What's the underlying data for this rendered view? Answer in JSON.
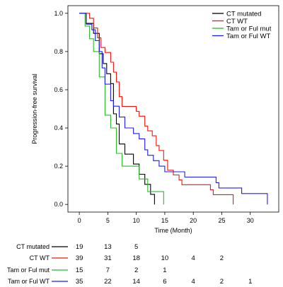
{
  "chart_data": {
    "type": "line",
    "title": "",
    "xlabel": "Time (Month)",
    "ylabel": "Progression-free survival",
    "xlim": [
      -2,
      35
    ],
    "ylim": [
      -0.04,
      1.04
    ],
    "xticks": [
      0,
      5,
      10,
      15,
      20,
      25,
      30
    ],
    "yticks": [
      "0.0",
      "0.2",
      "0.4",
      "0.6",
      "0.8",
      "1.0"
    ],
    "legend_position": "top-right",
    "series": [
      {
        "name": "CT mutated",
        "color": "#000000",
        "steps": [
          [
            0,
            1.0
          ],
          [
            1.2,
            0.947
          ],
          [
            2.5,
            0.895
          ],
          [
            3.5,
            0.789
          ],
          [
            4.2,
            0.737
          ],
          [
            4.8,
            0.684
          ],
          [
            5.5,
            0.632
          ],
          [
            6.0,
            0.474
          ],
          [
            6.5,
            0.421
          ],
          [
            7.0,
            0.316
          ],
          [
            8.0,
            0.263
          ],
          [
            9.5,
            0.211
          ],
          [
            10.5,
            0.158
          ],
          [
            11.5,
            0.105
          ],
          [
            12.5,
            0.053
          ],
          [
            13.2,
            0.0
          ]
        ],
        "end": 13.2
      },
      {
        "name": "CT WT",
        "color": "#e8190f",
        "steps": [
          [
            0,
            1.0
          ],
          [
            1.8,
            0.974
          ],
          [
            2.5,
            0.923
          ],
          [
            3.2,
            0.872
          ],
          [
            3.8,
            0.821
          ],
          [
            4.5,
            0.795
          ],
          [
            5.5,
            0.744
          ],
          [
            6.0,
            0.692
          ],
          [
            6.5,
            0.641
          ],
          [
            7.0,
            0.564
          ],
          [
            7.5,
            0.513
          ],
          [
            10.0,
            0.487
          ],
          [
            10.5,
            0.462
          ],
          [
            11.5,
            0.41
          ],
          [
            12.0,
            0.385
          ],
          [
            12.8,
            0.359
          ],
          [
            13.5,
            0.308
          ],
          [
            14.0,
            0.282
          ],
          [
            14.8,
            0.231
          ],
          [
            15.5,
            0.179
          ],
          [
            16.5,
            0.154
          ],
          [
            17.5,
            0.128
          ],
          [
            18.0,
            0.103
          ],
          [
            23.0,
            0.077
          ],
          [
            23.5,
            0.051
          ],
          [
            27.0,
            0.0
          ]
        ],
        "end": 27.0
      },
      {
        "name": "Tam or Ful mut",
        "color": "#2db82d",
        "steps": [
          [
            0,
            1.0
          ],
          [
            1.0,
            0.933
          ],
          [
            1.8,
            0.867
          ],
          [
            2.5,
            0.8
          ],
          [
            3.5,
            0.667
          ],
          [
            4.5,
            0.467
          ],
          [
            5.5,
            0.4
          ],
          [
            6.5,
            0.267
          ],
          [
            7.5,
            0.2
          ],
          [
            10.5,
            0.133
          ],
          [
            12.0,
            0.067
          ],
          [
            14.8,
            0.0
          ]
        ],
        "end": 14.8
      },
      {
        "name": "Tam or Ful WT",
        "color": "#1f1fe6",
        "steps": [
          [
            0,
            1.0
          ],
          [
            1.2,
            0.943
          ],
          [
            2.2,
            0.914
          ],
          [
            2.8,
            0.857
          ],
          [
            3.5,
            0.8
          ],
          [
            4.0,
            0.714
          ],
          [
            4.5,
            0.629
          ],
          [
            5.5,
            0.543
          ],
          [
            6.0,
            0.514
          ],
          [
            7.0,
            0.457
          ],
          [
            8.0,
            0.4
          ],
          [
            9.5,
            0.371
          ],
          [
            10.5,
            0.343
          ],
          [
            11.5,
            0.286
          ],
          [
            12.0,
            0.257
          ],
          [
            13.0,
            0.229
          ],
          [
            14.0,
            0.2
          ],
          [
            15.0,
            0.171
          ],
          [
            18.5,
            0.143
          ],
          [
            24.0,
            0.114
          ],
          [
            24.5,
            0.086
          ],
          [
            28.5,
            0.057
          ],
          [
            33.0,
            0.0
          ]
        ],
        "end": 33.0
      }
    ]
  },
  "risk_table": {
    "times": [
      0,
      5,
      10,
      15,
      20,
      25,
      30
    ],
    "rows": [
      {
        "name": "CT mutated",
        "color": "#000000",
        "counts": [
          "19",
          "13",
          "5",
          "",
          "",
          "",
          ""
        ]
      },
      {
        "name": "CT WT",
        "color": "#e8190f",
        "counts": [
          "39",
          "31",
          "18",
          "10",
          "4",
          "2",
          ""
        ]
      },
      {
        "name": "Tam or Ful mut",
        "color": "#2db82d",
        "counts": [
          "15",
          "7",
          "2",
          "1",
          "",
          "",
          ""
        ]
      },
      {
        "name": "Tam or Ful WT",
        "color": "#1f1fe6",
        "counts": [
          "35",
          "22",
          "14",
          "6",
          "4",
          "2",
          "1"
        ]
      }
    ]
  }
}
